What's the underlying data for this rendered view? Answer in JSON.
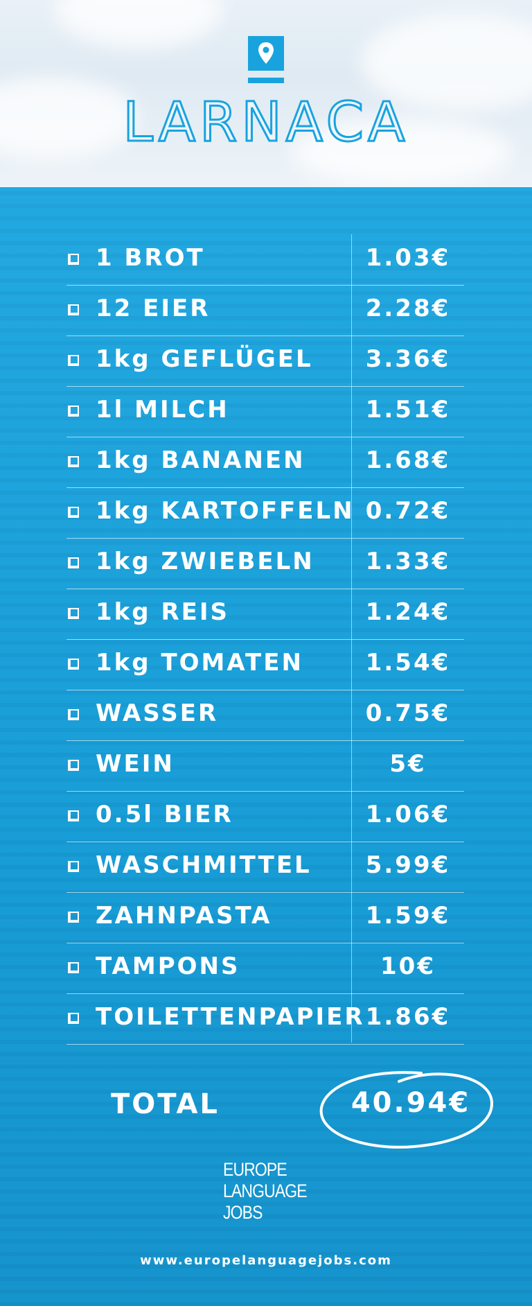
{
  "header": {
    "city": "LARNACA",
    "icon": "location-pin-icon"
  },
  "items": [
    {
      "name": "1 BROT",
      "price": "1.03€"
    },
    {
      "name": "12 EIER",
      "price": "2.28€"
    },
    {
      "name": "1kg GEFLÜGEL",
      "price": "3.36€"
    },
    {
      "name": "1l MILCH",
      "price": "1.51€"
    },
    {
      "name": "1kg BANANEN",
      "price": "1.68€"
    },
    {
      "name": "1kg KARTOFFELN",
      "price": "0.72€"
    },
    {
      "name": "1kg ZWIEBELN",
      "price": "1.33€"
    },
    {
      "name": "1kg REIS",
      "price": "1.24€"
    },
    {
      "name": "1kg TOMATEN",
      "price": "1.54€"
    },
    {
      "name": "WASSER",
      "price": "0.75€"
    },
    {
      "name": "WEIN",
      "price": "5€"
    },
    {
      "name": "0.5l BIER",
      "price": "1.06€"
    },
    {
      "name": "WASCHMITTEL",
      "price": "5.99€"
    },
    {
      "name": "ZAHNPASTA",
      "price": "1.59€"
    },
    {
      "name": "TAMPONS",
      "price": "10€"
    },
    {
      "name": "TOILETTENPAPIER",
      "price": "1.86€"
    }
  ],
  "total": {
    "label": "TOTAL",
    "value": "40.94€"
  },
  "logo": {
    "line1": "EUROPE",
    "line2": "LANGUAGE",
    "line3": "JOBS"
  },
  "footer": {
    "url": "www.europelanguagejobs.com"
  },
  "colors": {
    "brand_blue": "#1aa5df",
    "text": "#ffffff"
  }
}
